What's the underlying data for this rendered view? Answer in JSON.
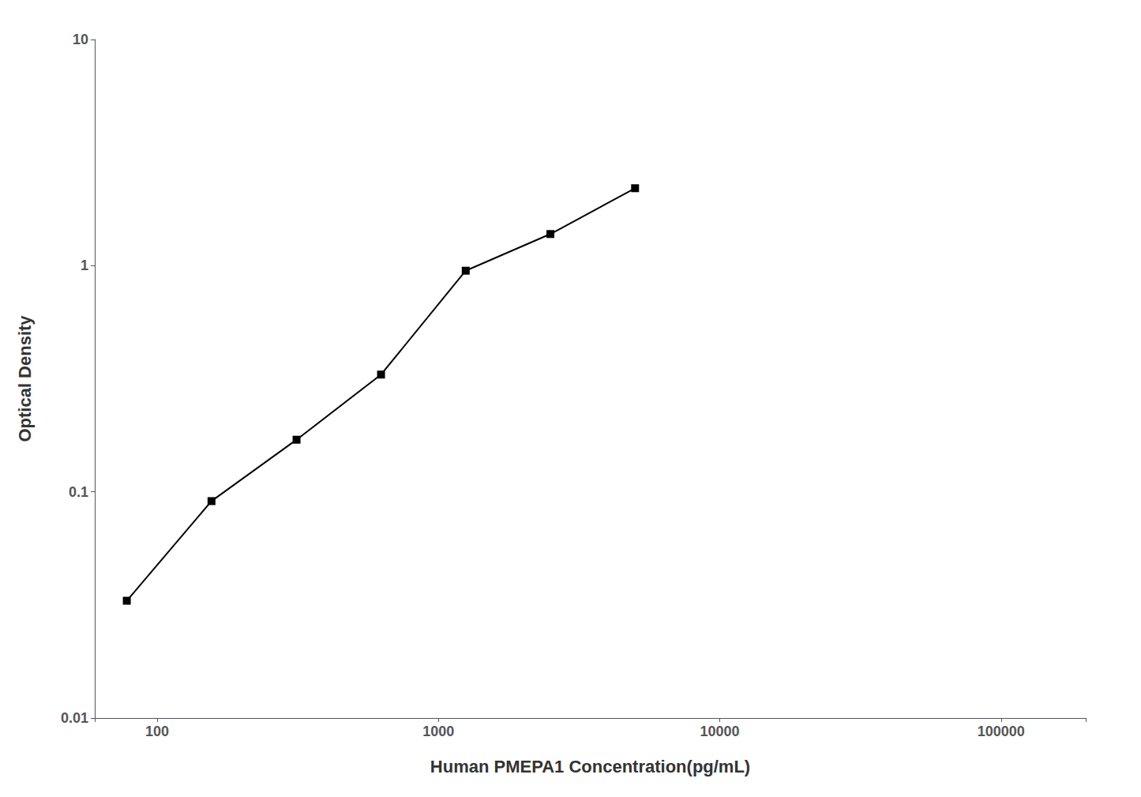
{
  "chart_data": {
    "type": "line",
    "x": [
      78,
      156,
      313,
      625,
      1250,
      2500,
      5000
    ],
    "values": [
      0.033,
      0.091,
      0.17,
      0.33,
      0.95,
      1.38,
      2.2
    ],
    "xlabel": "Human PMEPA1 Concentration(pg/mL)",
    "ylabel": "Optical Density",
    "xlim": [
      60,
      200000
    ],
    "ylim": [
      0.01,
      10
    ],
    "xticks": [
      100,
      1000,
      10000,
      100000
    ],
    "yticks": [
      0.01,
      0.1,
      1,
      10
    ],
    "log": true,
    "grid": false,
    "color": "#000000",
    "marker": "square",
    "line_style": "solid"
  }
}
